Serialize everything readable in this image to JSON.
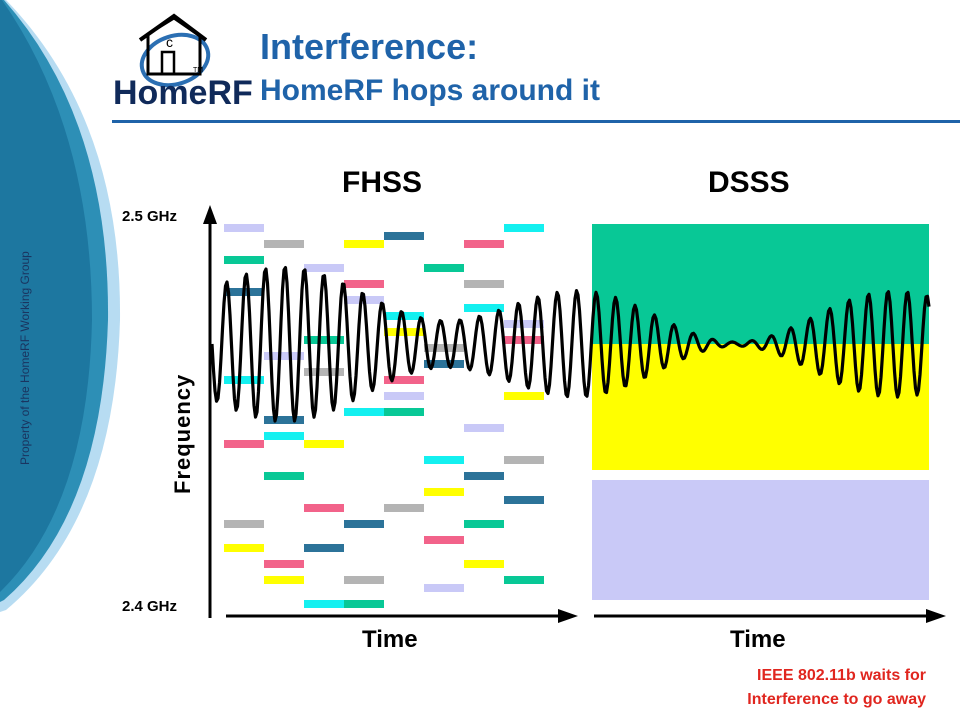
{
  "slide": {
    "title": "Interference:",
    "subtitle": "HomeRF hops around it",
    "side_text": "Property of the HomeRF Working Group",
    "logo_text": "HomeRF",
    "logo_tm": "TM",
    "logo_letter": "c"
  },
  "diagram": {
    "fhss_label": "FHSS",
    "dsss_label": "DSSS",
    "y_top_label": "2.5 GHz",
    "y_bottom_label": "2.4 GHz",
    "y_axis_label": "Frequency",
    "x_axis_label_left": "Time",
    "x_axis_label_right": "Time",
    "note_line1": "IEEE 802.11b waits for",
    "note_line2": "Interference to go away"
  },
  "colors": {
    "title": "#1f63a9",
    "lavender": "#c9c9f7",
    "gray": "#b4b4b4",
    "teal": "#08c896",
    "pink": "#f2638a",
    "yellow": "#ffff00",
    "steel": "#2c7399",
    "cyan": "#14f0f0",
    "note": "#e0261f"
  }
}
